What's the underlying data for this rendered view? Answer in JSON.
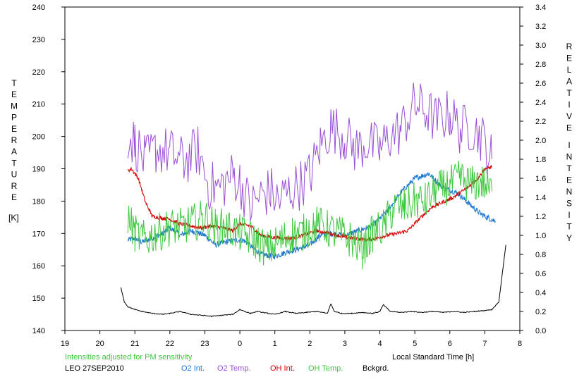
{
  "chart_data": {
    "type": "line",
    "x_axis": {
      "label": "Local Standard Time [h]",
      "range": [
        19,
        32
      ],
      "tick_labels": [
        "19",
        "20",
        "21",
        "22",
        "23",
        "0",
        "1",
        "2",
        "3",
        "4",
        "5",
        "6",
        "7",
        "8"
      ]
    },
    "y_left": {
      "label_letters": [
        "T",
        "E",
        "M",
        "P",
        "E",
        "R",
        "A",
        "T",
        "U",
        "R",
        "E"
      ],
      "unit": "[K]",
      "range": [
        140,
        240
      ],
      "tick_labels": [
        "140",
        "150",
        "160",
        "170",
        "180",
        "190",
        "200",
        "210",
        "220",
        "230",
        "240"
      ]
    },
    "y_right": {
      "label_word1": [
        "R",
        "E",
        "L",
        "A",
        "T",
        "I",
        "V",
        "E"
      ],
      "label_word2": [
        "I",
        "N",
        "T",
        "E",
        "N",
        "S",
        "I",
        "T",
        "Y"
      ],
      "range": [
        0.0,
        3.4
      ],
      "tick_labels": [
        "0.0",
        "0.2",
        "0.4",
        "0.6",
        "0.8",
        "1.0",
        "1.2",
        "1.4",
        "1.6",
        "1.8",
        "2.0",
        "2.2",
        "2.4",
        "2.6",
        "2.8",
        "3.0",
        "3.2",
        "3.4"
      ]
    },
    "grid": false,
    "series": [
      {
        "name": "O2 Int.",
        "axis": "right",
        "color": "#1f77d0",
        "x": [
          20.8,
          21.0,
          21.2,
          21.5,
          21.8,
          22.0,
          22.3,
          22.6,
          23.0,
          23.3,
          23.6,
          23.9,
          24.1,
          24.6,
          25.0,
          25.3,
          25.6,
          26.0,
          26.3,
          26.6,
          27.0,
          27.4,
          27.8,
          28.2,
          28.6,
          29.0,
          29.4,
          29.8,
          30.2,
          30.5,
          30.8,
          31.0,
          31.3
        ],
        "y": [
          0.95,
          0.97,
          0.93,
          0.97,
          1.02,
          1.08,
          1.0,
          1.05,
          1.0,
          0.9,
          0.93,
          0.95,
          0.95,
          0.8,
          0.78,
          0.82,
          0.85,
          0.9,
          1.0,
          1.02,
          1.0,
          1.05,
          1.1,
          1.25,
          1.45,
          1.6,
          1.65,
          1.5,
          1.45,
          1.35,
          1.25,
          1.2,
          1.15
        ]
      },
      {
        "name": "O2 Temp.",
        "axis": "left",
        "color": "#9a4fd6",
        "x": [
          20.8,
          21.0,
          21.3,
          21.6,
          22.0,
          22.4,
          22.8,
          23.1,
          23.4,
          23.8,
          24.0,
          24.3,
          24.6,
          24.9,
          25.1,
          25.4,
          25.7,
          26.0,
          26.3,
          26.6,
          27.0,
          27.3,
          27.6,
          28.0,
          28.3,
          28.6,
          29.0,
          29.3,
          29.6,
          30.0,
          30.3,
          30.6,
          30.9,
          31.2
        ],
        "y": [
          200,
          198,
          192,
          196,
          195,
          192,
          196,
          185,
          184,
          188,
          186,
          178,
          182,
          183,
          180,
          183,
          185,
          188,
          197,
          203,
          200,
          196,
          198,
          196,
          200,
          202,
          210,
          208,
          205,
          207,
          202,
          203,
          200,
          193
        ]
      },
      {
        "name": "OH Int.",
        "axis": "right",
        "color": "#d40000",
        "x": [
          20.8,
          20.9,
          21.1,
          21.3,
          21.5,
          21.8,
          22.0,
          22.3,
          22.6,
          22.9,
          23.2,
          23.5,
          23.8,
          24.0,
          24.3,
          24.6,
          24.9,
          25.2,
          25.5,
          25.8,
          26.2,
          26.6,
          27.0,
          27.3,
          27.6,
          27.9,
          28.2,
          28.5,
          28.8,
          29.2,
          29.5,
          29.8,
          30.1,
          30.5,
          30.8,
          31.0,
          31.2
        ],
        "y": [
          1.68,
          1.7,
          1.6,
          1.35,
          1.2,
          1.18,
          1.17,
          1.12,
          1.1,
          1.08,
          1.1,
          1.08,
          1.05,
          1.12,
          1.1,
          1.0,
          0.98,
          0.97,
          0.97,
          1.0,
          1.05,
          1.02,
          0.98,
          0.97,
          0.95,
          0.97,
          1.0,
          1.02,
          1.05,
          1.2,
          1.3,
          1.35,
          1.4,
          1.5,
          1.6,
          1.7,
          1.72
        ]
      },
      {
        "name": "OH Temp.",
        "axis": "left",
        "color": "#3ec83e",
        "x": [
          20.8,
          21.0,
          21.3,
          21.6,
          22.0,
          22.3,
          22.6,
          23.0,
          23.3,
          23.6,
          24.0,
          24.4,
          24.8,
          25.2,
          25.5,
          25.8,
          26.1,
          26.4,
          26.8,
          27.2,
          27.5,
          27.8,
          28.1,
          28.4,
          28.7,
          29.0,
          29.3,
          29.6,
          30.0,
          30.3,
          30.6,
          30.9,
          31.2
        ],
        "y": [
          175,
          170,
          168,
          170,
          172,
          172,
          173,
          175,
          172,
          172,
          170,
          168,
          165,
          168,
          170,
          170,
          173,
          172,
          170,
          168,
          165,
          170,
          172,
          178,
          178,
          180,
          180,
          183,
          185,
          187,
          185,
          186,
          183
        ]
      },
      {
        "name": "Bckgrd.",
        "axis": "right",
        "color": "#000000",
        "x": [
          20.6,
          20.7,
          20.8,
          21.0,
          21.2,
          21.5,
          21.8,
          22.0,
          22.3,
          22.6,
          22.9,
          23.2,
          23.5,
          23.8,
          24.0,
          24.3,
          24.5,
          24.8,
          25.0,
          25.3,
          25.6,
          25.9,
          26.2,
          26.5,
          26.6,
          26.7,
          26.9,
          27.2,
          27.5,
          27.8,
          28.0,
          28.1,
          28.3,
          28.6,
          28.9,
          29.2,
          29.5,
          29.8,
          30.1,
          30.4,
          30.7,
          31.0,
          31.2,
          31.4,
          31.5,
          31.6
        ],
        "y": [
          0.45,
          0.3,
          0.25,
          0.22,
          0.2,
          0.18,
          0.17,
          0.18,
          0.2,
          0.17,
          0.16,
          0.15,
          0.16,
          0.17,
          0.22,
          0.18,
          0.2,
          0.18,
          0.17,
          0.2,
          0.18,
          0.19,
          0.2,
          0.18,
          0.28,
          0.2,
          0.18,
          0.18,
          0.19,
          0.18,
          0.2,
          0.27,
          0.2,
          0.19,
          0.2,
          0.19,
          0.2,
          0.19,
          0.2,
          0.19,
          0.2,
          0.21,
          0.22,
          0.3,
          0.6,
          0.9
        ]
      }
    ]
  },
  "footer": {
    "note": "Intensities adjusted for PM sensitivity",
    "station": "LEO 27SEP2010",
    "legend": [
      {
        "label": "O2 Int.",
        "color": "#1f77d0"
      },
      {
        "label": "O2 Temp.",
        "color": "#9a4fd6"
      },
      {
        "label": "OH Int.",
        "color": "#d40000"
      },
      {
        "label": "OH Temp.",
        "color": "#3ec83e"
      },
      {
        "label": "Bckgrd.",
        "color": "#000000"
      }
    ],
    "note_color": "#3ec83e"
  }
}
